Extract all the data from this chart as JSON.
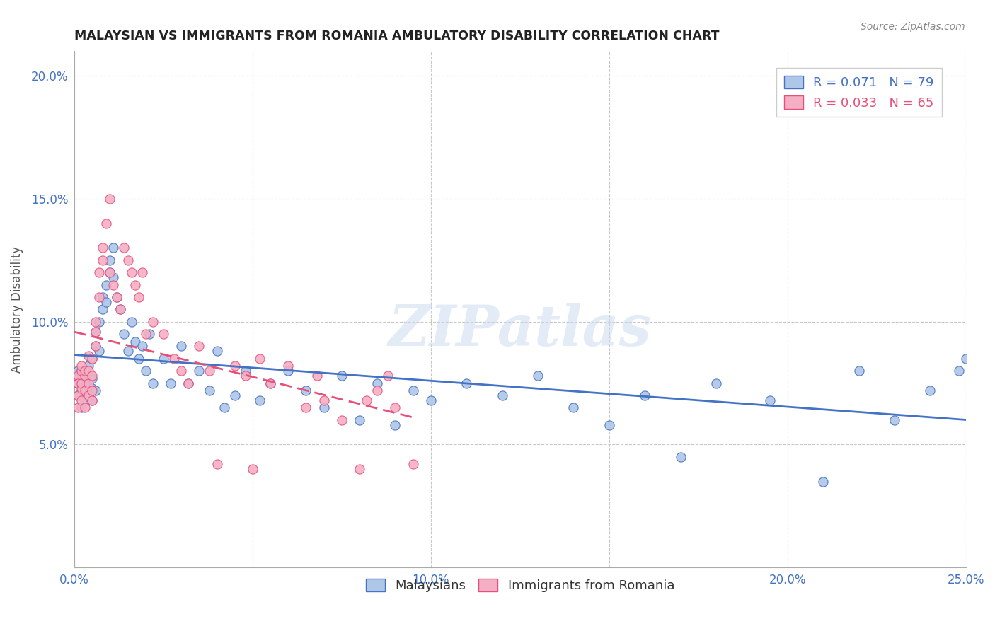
{
  "title": "MALAYSIAN VS IMMIGRANTS FROM ROMANIA AMBULATORY DISABILITY CORRELATION CHART",
  "source": "Source: ZipAtlas.com",
  "xlabel": "",
  "ylabel": "Ambulatory Disability",
  "xlim": [
    0.0,
    0.25
  ],
  "ylim": [
    0.0,
    0.21
  ],
  "x_ticks": [
    0.0,
    0.05,
    0.1,
    0.15,
    0.2,
    0.25
  ],
  "x_tick_labels": [
    "0.0%",
    "",
    "10.0%",
    "",
    "20.0%",
    "25.0%"
  ],
  "y_ticks": [
    0.05,
    0.1,
    0.15,
    0.2
  ],
  "y_tick_labels": [
    "5.0%",
    "10.0%",
    "15.0%",
    "20.0%"
  ],
  "legend_label1": "Malaysians",
  "legend_label2": "Immigrants from Romania",
  "color_blue": "#aec6e8",
  "color_pink": "#f4afc4",
  "line_color_blue": "#4472c4",
  "line_color_pink": "#e8507a",
  "watermark": "ZIPatlas",
  "background_color": "#ffffff",
  "grid_color": "#c8c8c8",
  "malaysians_x": [
    0.001,
    0.001,
    0.001,
    0.002,
    0.002,
    0.002,
    0.002,
    0.002,
    0.003,
    0.003,
    0.003,
    0.003,
    0.004,
    0.004,
    0.004,
    0.005,
    0.005,
    0.005,
    0.005,
    0.006,
    0.006,
    0.006,
    0.007,
    0.007,
    0.008,
    0.008,
    0.009,
    0.009,
    0.01,
    0.01,
    0.011,
    0.011,
    0.012,
    0.013,
    0.014,
    0.015,
    0.016,
    0.017,
    0.018,
    0.019,
    0.02,
    0.021,
    0.022,
    0.025,
    0.027,
    0.03,
    0.032,
    0.035,
    0.038,
    0.04,
    0.042,
    0.045,
    0.048,
    0.052,
    0.055,
    0.06,
    0.065,
    0.07,
    0.075,
    0.08,
    0.085,
    0.09,
    0.095,
    0.1,
    0.11,
    0.12,
    0.13,
    0.14,
    0.15,
    0.16,
    0.17,
    0.18,
    0.195,
    0.21,
    0.22,
    0.23,
    0.24,
    0.248,
    0.25
  ],
  "malaysians_y": [
    0.08,
    0.075,
    0.07,
    0.075,
    0.08,
    0.072,
    0.065,
    0.078,
    0.068,
    0.073,
    0.08,
    0.075,
    0.07,
    0.078,
    0.082,
    0.073,
    0.077,
    0.068,
    0.085,
    0.072,
    0.09,
    0.096,
    0.1,
    0.088,
    0.11,
    0.105,
    0.115,
    0.108,
    0.12,
    0.125,
    0.118,
    0.13,
    0.11,
    0.105,
    0.095,
    0.088,
    0.1,
    0.092,
    0.085,
    0.09,
    0.08,
    0.095,
    0.075,
    0.085,
    0.075,
    0.09,
    0.075,
    0.08,
    0.072,
    0.088,
    0.065,
    0.07,
    0.08,
    0.068,
    0.075,
    0.08,
    0.072,
    0.065,
    0.078,
    0.06,
    0.075,
    0.058,
    0.072,
    0.068,
    0.075,
    0.07,
    0.078,
    0.065,
    0.058,
    0.07,
    0.045,
    0.075,
    0.068,
    0.035,
    0.08,
    0.06,
    0.072,
    0.08,
    0.085
  ],
  "romania_x": [
    0.001,
    0.001,
    0.001,
    0.001,
    0.002,
    0.002,
    0.002,
    0.002,
    0.002,
    0.003,
    0.003,
    0.003,
    0.003,
    0.004,
    0.004,
    0.004,
    0.004,
    0.005,
    0.005,
    0.005,
    0.005,
    0.006,
    0.006,
    0.006,
    0.007,
    0.007,
    0.008,
    0.008,
    0.009,
    0.01,
    0.01,
    0.011,
    0.012,
    0.013,
    0.014,
    0.015,
    0.016,
    0.017,
    0.018,
    0.019,
    0.02,
    0.022,
    0.025,
    0.028,
    0.03,
    0.032,
    0.035,
    0.038,
    0.04,
    0.045,
    0.048,
    0.05,
    0.052,
    0.055,
    0.06,
    0.065,
    0.068,
    0.07,
    0.075,
    0.08,
    0.082,
    0.085,
    0.088,
    0.09,
    0.095
  ],
  "romania_y": [
    0.078,
    0.075,
    0.07,
    0.065,
    0.08,
    0.073,
    0.068,
    0.075,
    0.082,
    0.072,
    0.078,
    0.065,
    0.08,
    0.075,
    0.07,
    0.08,
    0.086,
    0.072,
    0.078,
    0.068,
    0.085,
    0.09,
    0.096,
    0.1,
    0.11,
    0.12,
    0.13,
    0.125,
    0.14,
    0.15,
    0.12,
    0.115,
    0.11,
    0.105,
    0.13,
    0.125,
    0.12,
    0.115,
    0.11,
    0.12,
    0.095,
    0.1,
    0.095,
    0.085,
    0.08,
    0.075,
    0.09,
    0.08,
    0.042,
    0.082,
    0.078,
    0.04,
    0.085,
    0.075,
    0.082,
    0.065,
    0.078,
    0.068,
    0.06,
    0.04,
    0.068,
    0.072,
    0.078,
    0.065,
    0.042
  ]
}
